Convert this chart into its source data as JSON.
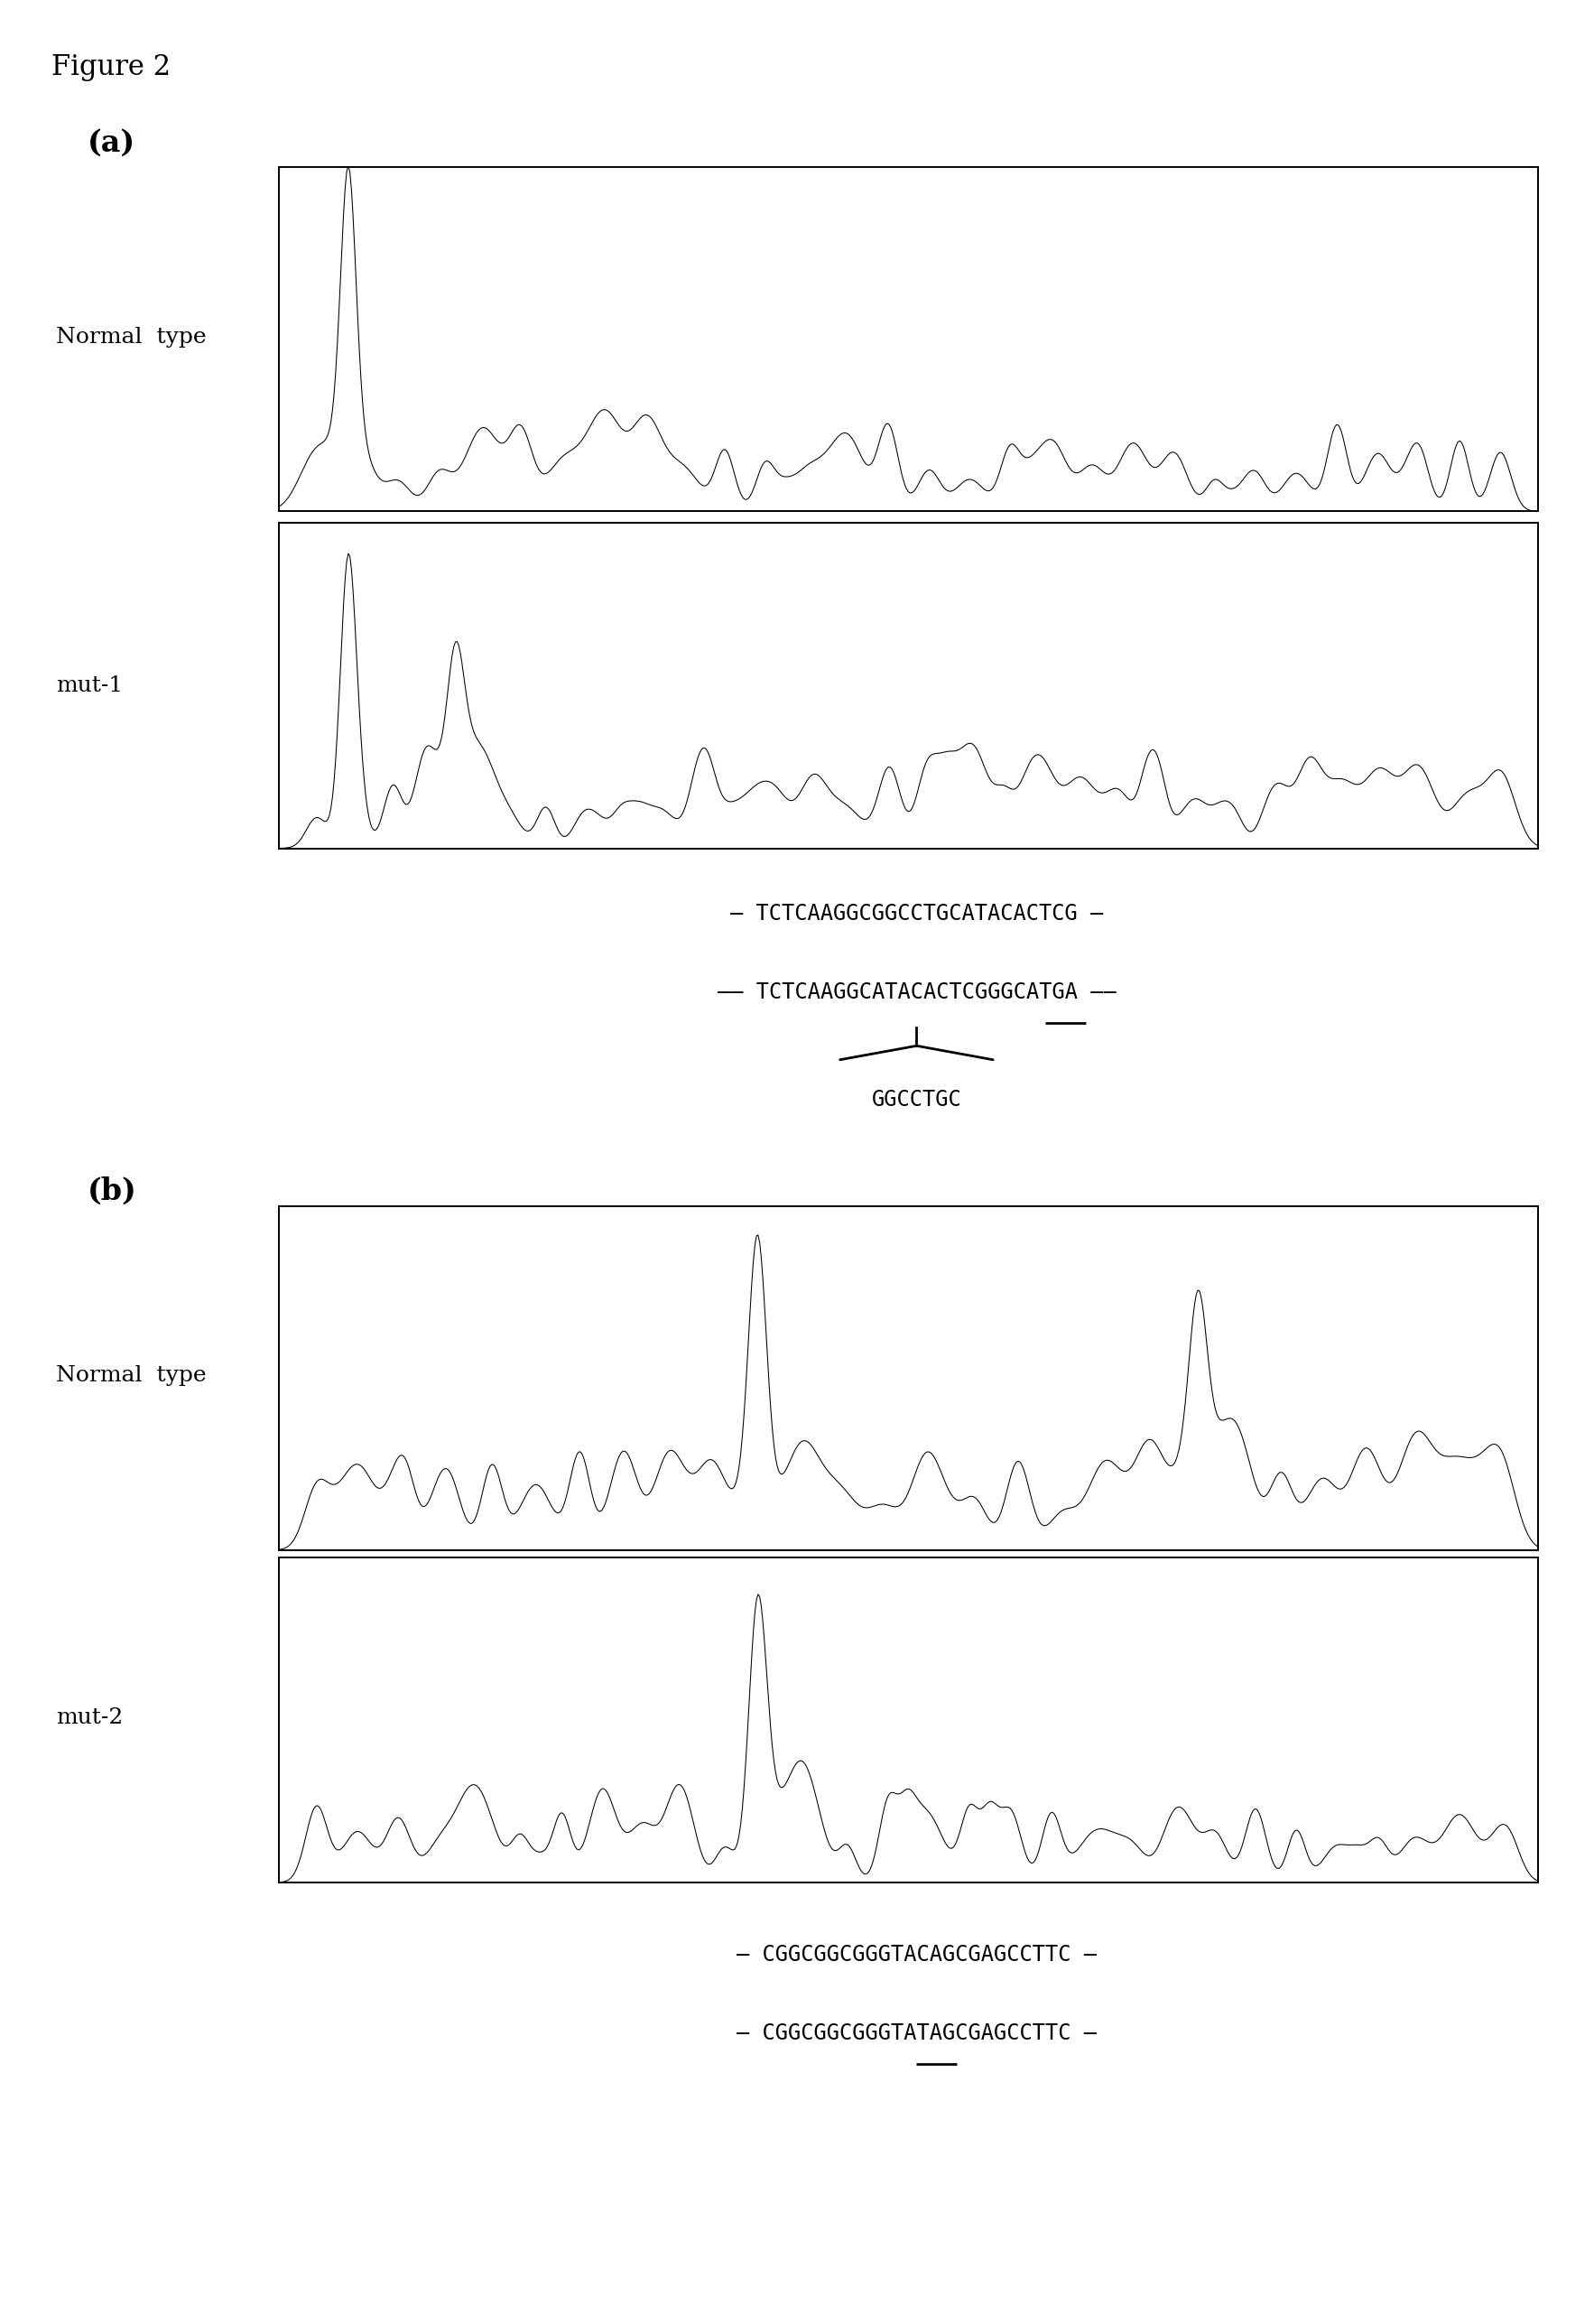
{
  "figure_title": "Figure 2",
  "bg": "#ffffff",
  "panel_a_label": "(a)",
  "panel_b_label": "(b)",
  "normal_label": "Normal  type",
  "mut1_label": "mut-1",
  "mut2_label": "mut-2",
  "seq_a_normal_left": "— TCTCAAGGCGGCCTGCATACACTCG —",
  "seq_a_mut_left": "—— TCTCAAGGCATACACTCGGGCA",
  "seq_a_mut_tga": "TGA",
  "seq_a_mut_right": " ——",
  "seq_a_deleted": "GGCCTGC",
  "seq_b_normal": "— CGGCGGCGGGTACAGCGAGCCTTC —",
  "seq_b_mut_left": "— CGGCGGCGGGTA",
  "seq_b_mut_tag": "TAG",
  "seq_b_mut_right": "CGAGCCTTC —",
  "fontsize_title": 22,
  "fontsize_label": 24,
  "fontsize_sample": 18,
  "fontsize_seq": 17
}
